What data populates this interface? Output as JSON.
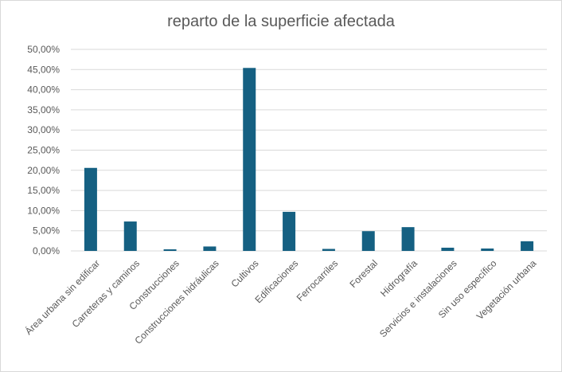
{
  "chart_data": {
    "type": "bar",
    "title": "reparto de la superficie afectada",
    "categories": [
      "Área urbana sin edificar",
      "Carreteras y caminos",
      "Construcciones",
      "Construcciones hidráulicas",
      "Cultivos",
      "Edificaciones",
      "Ferrocarriles",
      "Forestal",
      "Hidrografía",
      "Servicios e instalaciones",
      "Sin uso específico",
      "Vegetación urbana"
    ],
    "values": [
      20.6,
      7.3,
      0.4,
      1.1,
      45.4,
      9.7,
      0.5,
      4.9,
      5.9,
      0.8,
      0.6,
      2.4
    ],
    "ylim": [
      0,
      50
    ],
    "yticks": [
      "0,00%",
      "5,00%",
      "10,00%",
      "15,00%",
      "20,00%",
      "25,00%",
      "30,00%",
      "35,00%",
      "40,00%",
      "45,00%",
      "50,00%"
    ],
    "grid": true,
    "bar_color": "#156082",
    "legend": "none"
  }
}
